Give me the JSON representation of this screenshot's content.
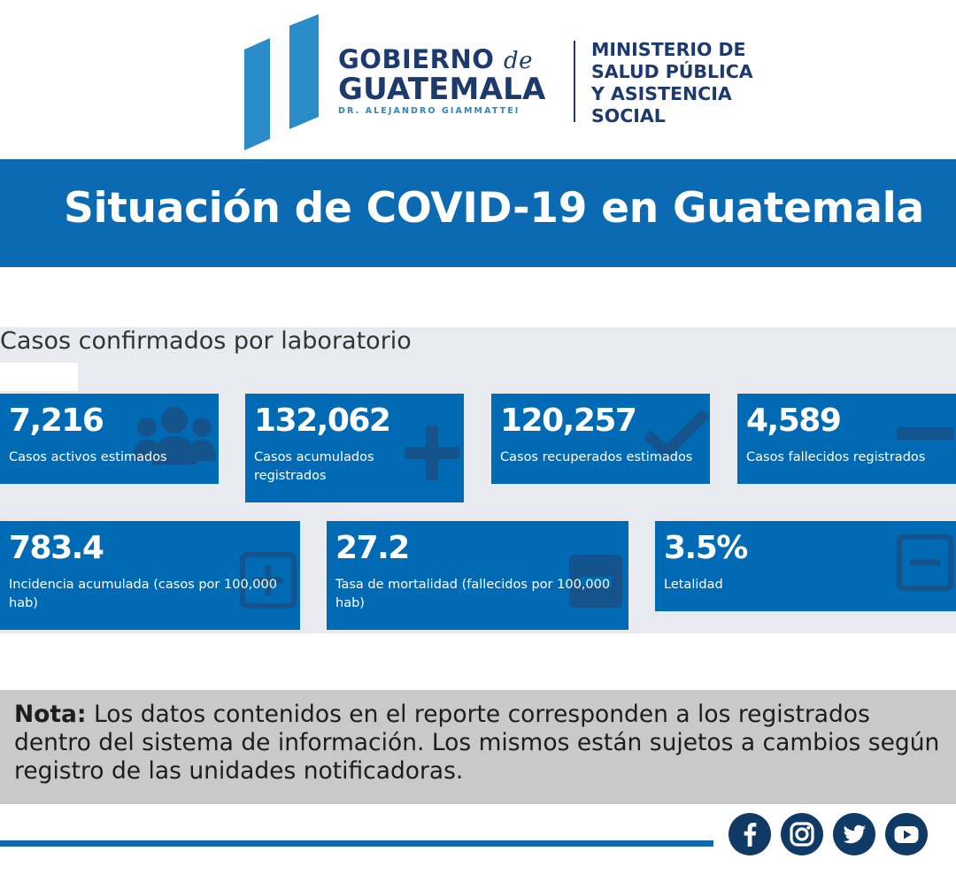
{
  "header": {
    "gov_line1": "GOBIERNO",
    "gov_line1_de": "de",
    "gov_line2": "GUATEMALA",
    "gov_line3": "DR. ALEJANDRO GIAMMATTEI",
    "ministry": [
      "MINISTERIO DE",
      "SALUD PÚBLICA",
      "Y ASISTENCIA",
      "SOCIAL"
    ]
  },
  "banner": {
    "title": "Situación de COVID-19 en Guatemala"
  },
  "panel": {
    "title": "Casos confirmados por laboratorio",
    "cards": [
      {
        "value": "7,216",
        "label": "Casos activos estimados",
        "icon": "users-icon"
      },
      {
        "value": "132,062",
        "label": "Casos acumulados registrados",
        "icon": "plus-icon"
      },
      {
        "value": "120,257",
        "label": "Casos recuperados estimados",
        "icon": "check-icon"
      },
      {
        "value": "4,589",
        "label": "Casos fallecidos registrados",
        "icon": "minus-icon"
      },
      {
        "value": "783.4",
        "label": "Incidencia acumulada (casos por 100,000 hab)",
        "icon": "plus-square-icon"
      },
      {
        "value": "27.2",
        "label": "Tasa de mortalidad (fallecidos por 100,000 hab)",
        "icon": "minus-square-filled-icon"
      },
      {
        "value": "3.5%",
        "label": "Letalidad",
        "icon": "minus-square-icon"
      }
    ]
  },
  "note": {
    "bold": "Nota:",
    "text": " Los datos contenidos en el reporte corresponden a los registrados dentro del sistema de información. Los mismos están sujetos a cambios según registro de las unidades notificadoras."
  },
  "footer": {
    "social": [
      "facebook-icon",
      "instagram-icon",
      "twitter-icon",
      "youtube-icon"
    ]
  },
  "colors": {
    "brand_blue": "#0b6ab2",
    "card_blue": "#006bb4",
    "navy": "#1c3a6e",
    "panel_bg": "#e8eaef",
    "note_bg": "#c9c9c9",
    "icon_dark": "#0f3a66"
  }
}
